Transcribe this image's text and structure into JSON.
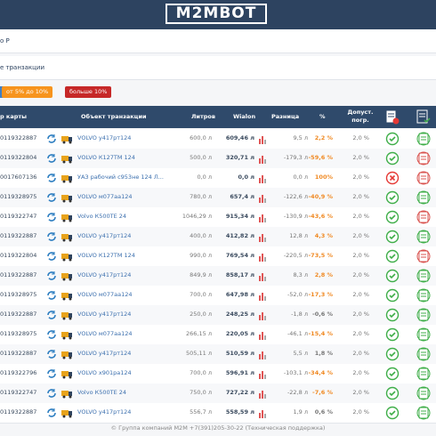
{
  "header": {
    "logo": "M2MBOT"
  },
  "page": {
    "crumb": "о Р",
    "section": "е транзакции",
    "filters": [
      "от 5% до 10%",
      "больше 10%"
    ]
  },
  "table": {
    "columns": [
      "р карты",
      "Объект транзакции",
      "Литров",
      "Wialon",
      "Разница",
      "%",
      "Допуст. погр."
    ],
    "rows": [
      {
        "card": "0119322887",
        "object": "VOLVO у417рт124",
        "liters": "600,0 л",
        "wialon": "609,46 л",
        "diff": "9,5 л",
        "pct": "2,2 %",
        "tolerance": "2,0 %",
        "pct_color": "#f08a24",
        "status": "ok",
        "report": "ok"
      },
      {
        "card": "0119322804",
        "object": "VOLVO К127ТМ 124",
        "liters": "500,0 л",
        "wialon": "320,71 л",
        "diff": "-179,3 л",
        "pct": "-59,6 %",
        "tolerance": "2,0 %",
        "pct_color": "#f08a24",
        "status": "ok",
        "report": "alert"
      },
      {
        "card": "0017607136",
        "object": "УАЗ рабочий с953не 124 Л...",
        "liters": "0,0 л",
        "wialon": "0,0 л",
        "diff": "0,0 л",
        "pct": "100%",
        "tolerance": "2,0 %",
        "pct_color": "#f08a24",
        "status": "fail",
        "report": "alert"
      },
      {
        "card": "0119328975",
        "object": "VOLVO м077аа124",
        "liters": "780,0 л",
        "wialon": "657,4 л",
        "diff": "-122,6 л",
        "pct": "-40,9 %",
        "tolerance": "2,0 %",
        "pct_color": "#f08a24",
        "status": "ok",
        "report": "ok"
      },
      {
        "card": "0119322747",
        "object": "Volvo К500ТЕ 24",
        "liters": "1046,29 л",
        "wialon": "915,34 л",
        "diff": "-130,9 л",
        "pct": "-43,6 %",
        "tolerance": "2,0 %",
        "pct_color": "#f08a24",
        "status": "ok",
        "report": "alert"
      },
      {
        "card": "0119322887",
        "object": "VOLVO у417рт124",
        "liters": "400,0 л",
        "wialon": "412,82 л",
        "diff": "12,8 л",
        "pct": "4,3 %",
        "tolerance": "2,0 %",
        "pct_color": "#f08a24",
        "status": "ok",
        "report": "ok"
      },
      {
        "card": "0119322804",
        "object": "VOLVO К127ТМ 124",
        "liters": "990,0 л",
        "wialon": "769,54 л",
        "diff": "-220,5 л",
        "pct": "-73,5 %",
        "tolerance": "2,0 %",
        "pct_color": "#f08a24",
        "status": "ok",
        "report": "alert"
      },
      {
        "card": "0119322887",
        "object": "VOLVO у417рт124",
        "liters": "849,9 л",
        "wialon": "858,17 л",
        "diff": "8,3 л",
        "pct": "2,8 %",
        "tolerance": "2,0 %",
        "pct_color": "#f08a24",
        "status": "ok",
        "report": "ok"
      },
      {
        "card": "0119328975",
        "object": "VOLVO м077аа124",
        "liters": "700,0 л",
        "wialon": "647,98 л",
        "diff": "-52,0 л",
        "pct": "-17,3 %",
        "tolerance": "2,0 %",
        "pct_color": "#f08a24",
        "status": "ok",
        "report": "ok"
      },
      {
        "card": "0119322887",
        "object": "VOLVO у417рт124",
        "liters": "250,0 л",
        "wialon": "248,25 л",
        "diff": "-1,8 л",
        "pct": "-0,6 %",
        "tolerance": "2,0 %",
        "pct_color": "#777777",
        "status": "ok",
        "report": "ok"
      },
      {
        "card": "0119328975",
        "object": "VOLVO м077аа124",
        "liters": "266,15 л",
        "wialon": "220,05 л",
        "diff": "-46,1 л",
        "pct": "-15,4 %",
        "tolerance": "2,0 %",
        "pct_color": "#f08a24",
        "status": "ok",
        "report": "ok"
      },
      {
        "card": "0119322887",
        "object": "VOLVO у417рт124",
        "liters": "505,11 л",
        "wialon": "510,59 л",
        "diff": "5,5 л",
        "pct": "1,8 %",
        "tolerance": "2,0 %",
        "pct_color": "#777777",
        "status": "ok",
        "report": "ok"
      },
      {
        "card": "0119322796",
        "object": "VOLVO х901ра124",
        "liters": "700,0 л",
        "wialon": "596,91 л",
        "diff": "-103,1 л",
        "pct": "-34,4 %",
        "tolerance": "2,0 %",
        "pct_color": "#f08a24",
        "status": "ok",
        "report": "ok"
      },
      {
        "card": "0119322747",
        "object": "Volvo К500ТЕ 24",
        "liters": "750,0 л",
        "wialon": "727,22 л",
        "diff": "-22,8 л",
        "pct": "-7,6 %",
        "tolerance": "2,0 %",
        "pct_color": "#f08a24",
        "status": "ok",
        "report": "ok"
      },
      {
        "card": "0119322887",
        "object": "VOLVO у417рт124",
        "liters": "556,7 л",
        "wialon": "558,59 л",
        "diff": "1,9 л",
        "pct": "0,6 %",
        "tolerance": "2,0 %",
        "pct_color": "#777777",
        "status": "ok",
        "report": "ok"
      }
    ]
  },
  "footer": {
    "text": "© Группа компаний М2М +7(391)205-30-22 (Техническая поддержка)"
  }
}
